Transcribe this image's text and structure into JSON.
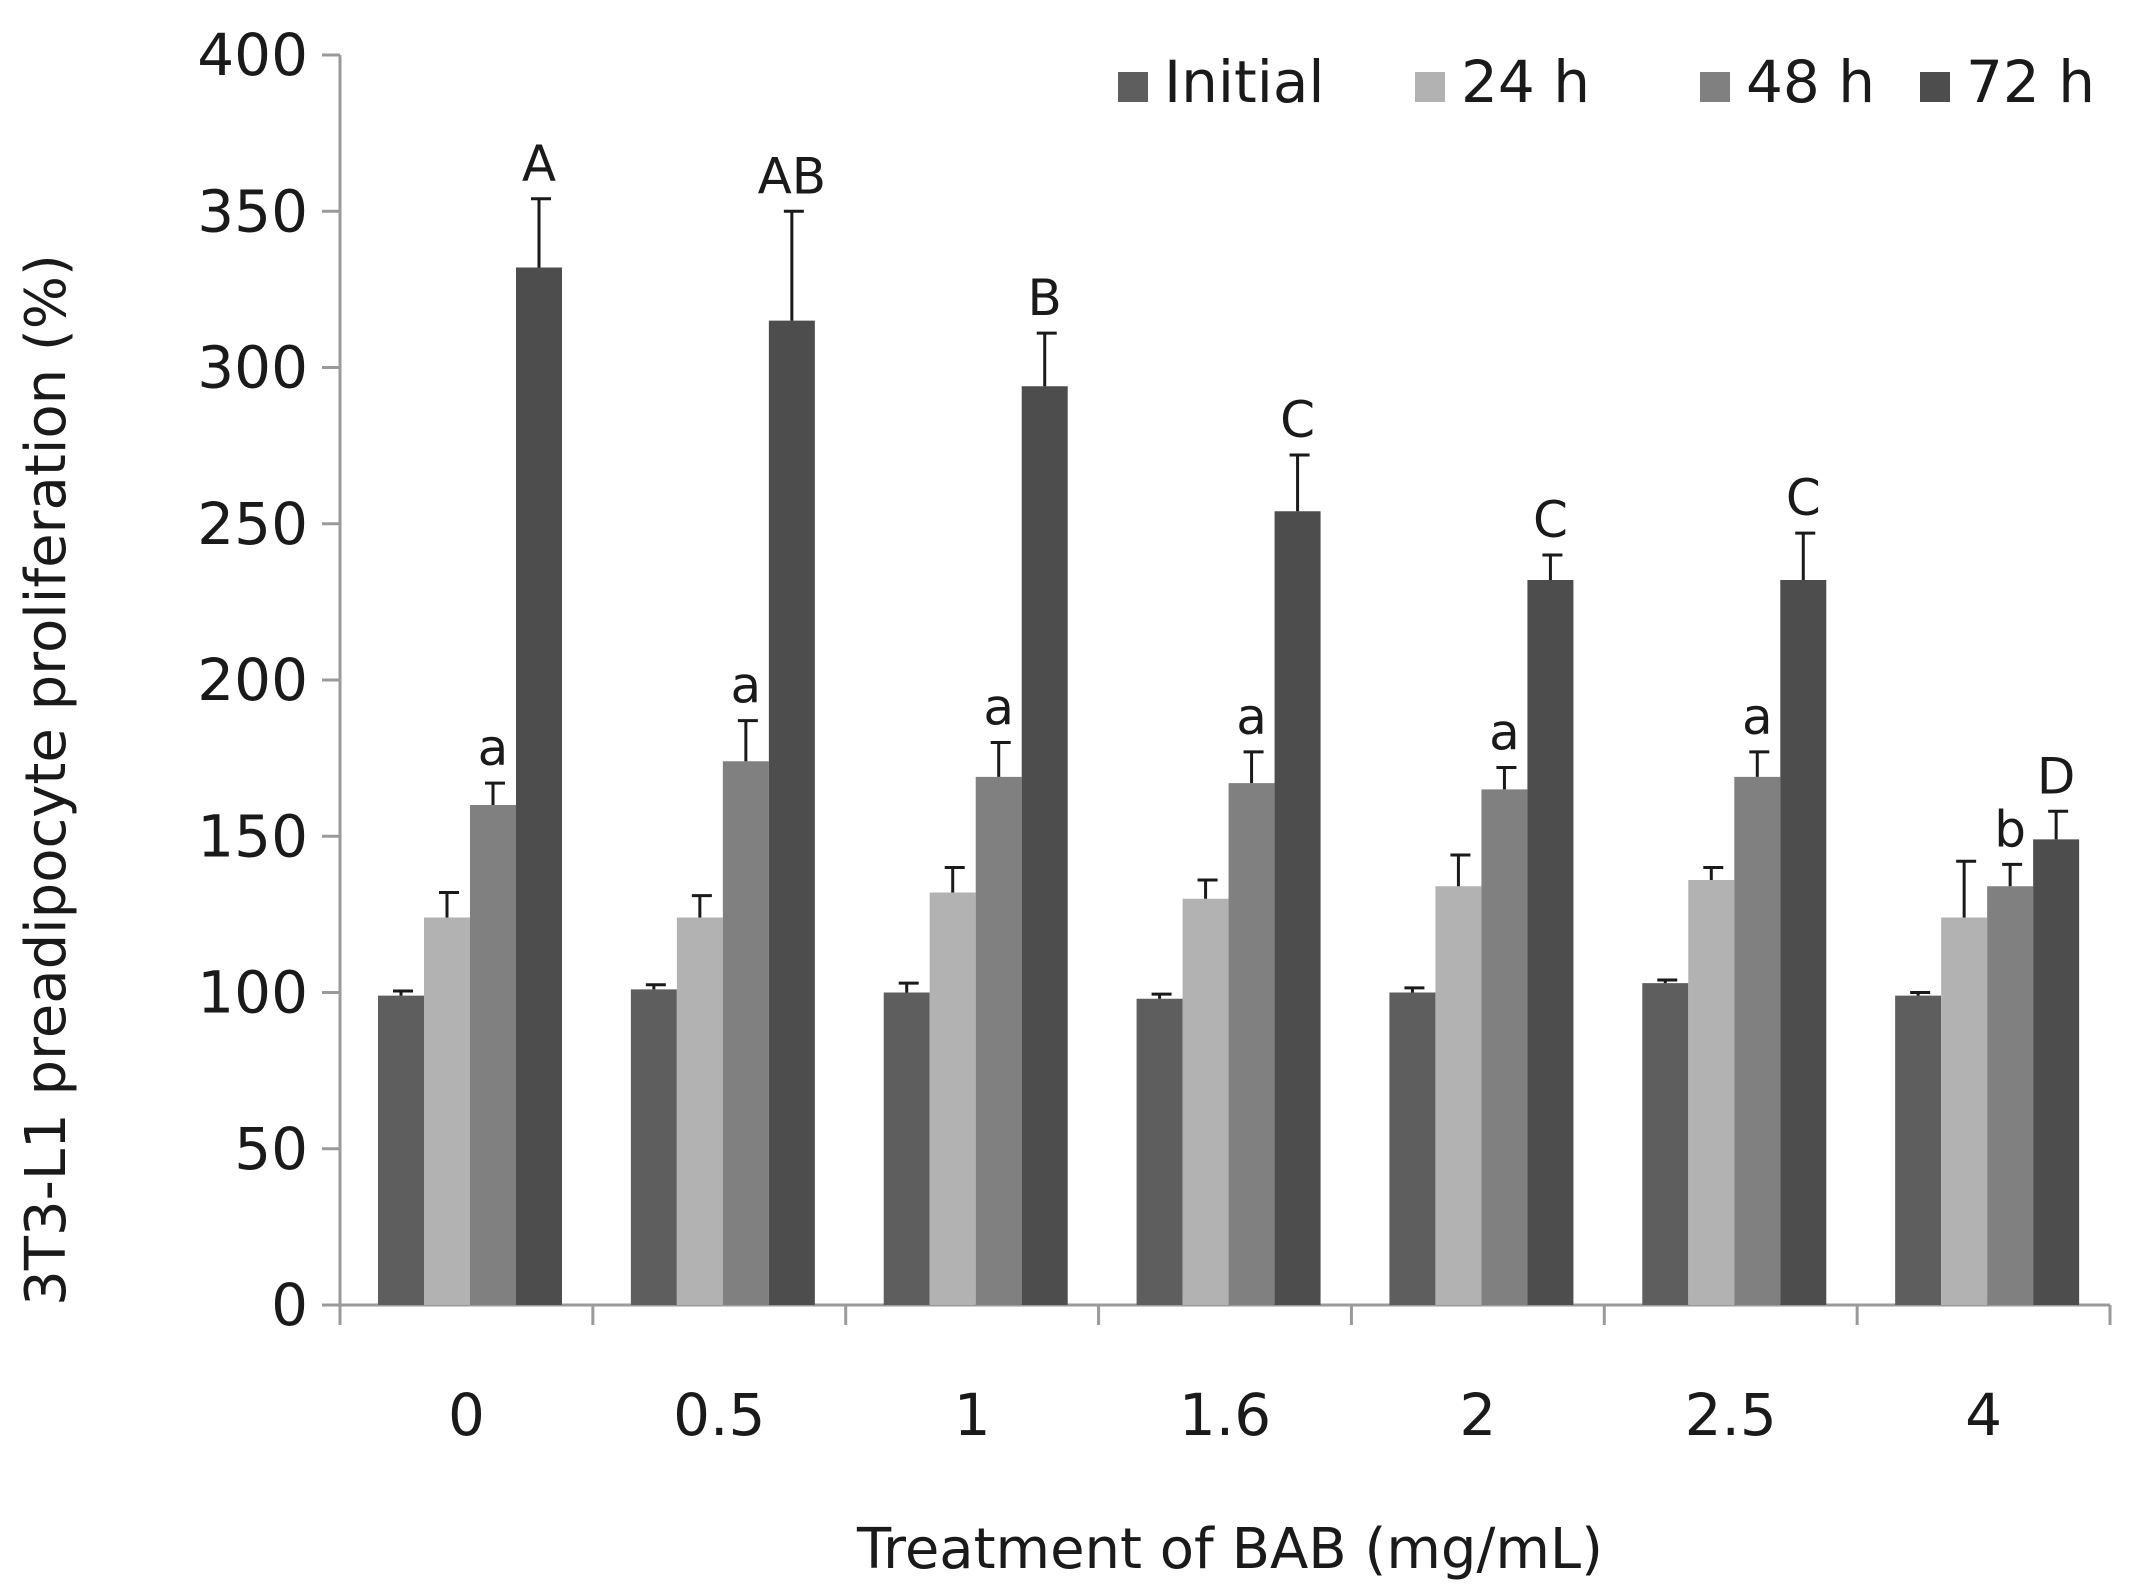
{
  "chart_data": {
    "type": "bar",
    "title": "",
    "xlabel": "Treatment of BAB (mg/mL)",
    "ylabel": "3T3-L1 preadipocyte proliferation (%)",
    "ylim": [
      0,
      400
    ],
    "yticks": [
      0,
      50,
      100,
      150,
      200,
      250,
      300,
      350,
      400
    ],
    "grid": false,
    "legend_position": "top-right",
    "categories": [
      "0",
      "0.5",
      "1",
      "1.6",
      "2",
      "2.5",
      "4"
    ],
    "series": [
      {
        "name": "Initial",
        "color": "#5e5e5e",
        "values": [
          99,
          101,
          100,
          98,
          100,
          103,
          99
        ],
        "errors": [
          1.5,
          1.5,
          3,
          1.5,
          1.5,
          1,
          1
        ],
        "labels": [
          "",
          "",
          "",
          "",
          "",
          "",
          ""
        ]
      },
      {
        "name": "24 h",
        "color": "#b2b2b2",
        "values": [
          124,
          124,
          132,
          130,
          134,
          136,
          124
        ],
        "errors": [
          8,
          7,
          8,
          6,
          10,
          4,
          18
        ],
        "labels": [
          "",
          "",
          "",
          "",
          "",
          "",
          ""
        ]
      },
      {
        "name": "48 h",
        "color": "#808080",
        "values": [
          160,
          174,
          169,
          167,
          165,
          169,
          134
        ],
        "errors": [
          7,
          13,
          11,
          10,
          7,
          8,
          7
        ],
        "labels": [
          "a",
          "a",
          "a",
          "a",
          "a",
          "a",
          "b"
        ]
      },
      {
        "name": "72 h",
        "color": "#4d4d4d",
        "values": [
          332,
          315,
          294,
          254,
          232,
          232,
          149
        ],
        "errors": [
          22,
          35,
          17,
          18,
          8,
          15,
          9
        ],
        "labels": [
          "A",
          "AB",
          "B",
          "C",
          "C",
          "C",
          "D"
        ]
      }
    ]
  }
}
